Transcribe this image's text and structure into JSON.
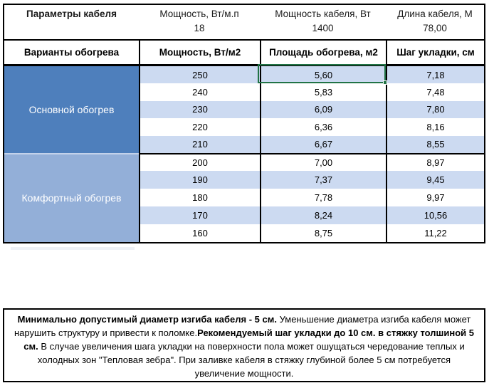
{
  "params": {
    "title": "Параметры кабеля",
    "items": [
      {
        "label": "Мощность, Вт/м.п",
        "value": "18"
      },
      {
        "label": "Мощность кабеля, Вт",
        "value": "1400"
      },
      {
        "label": "Длина кабеля, М",
        "value": "78,00"
      }
    ]
  },
  "heating_table": {
    "headers": {
      "variants": "Варианты обогрева",
      "power": "Мощность, Вт/м2",
      "area": "Площадь обогрева, м2",
      "step": "Шаг укладки, см"
    },
    "sections": [
      {
        "name": "Основной обогрев",
        "rows": [
          {
            "power": "250",
            "area": "5,60",
            "step": "7,18"
          },
          {
            "power": "240",
            "area": "5,83",
            "step": "7,48"
          },
          {
            "power": "230",
            "area": "6,09",
            "step": "7,80"
          },
          {
            "power": "220",
            "area": "6,36",
            "step": "8,16"
          },
          {
            "power": "210",
            "area": "6,67",
            "step": "8,55"
          }
        ]
      },
      {
        "name": "Комфортный обогрев",
        "rows": [
          {
            "power": "200",
            "area": "7,00",
            "step": "8,97"
          },
          {
            "power": "190",
            "area": "7,37",
            "step": "9,45"
          },
          {
            "power": "180",
            "area": "7,78",
            "step": "9,97"
          },
          {
            "power": "170",
            "area": "8,24",
            "step": "10,56"
          },
          {
            "power": "160",
            "area": "8,75",
            "step": "11,22"
          }
        ]
      }
    ]
  },
  "selection": {
    "selected_value": "5,60",
    "border_color": "#217346"
  },
  "note": {
    "bold1": "Минимально допустимый диаметр изгиба кабеля - 5 см.",
    "normal1": "  Уменьшение диаметра изгиба кабеля может нарушить структуру и привести к поломке.",
    "bold2": "Рекомендуемый шаг укладки до 10 см. в стяжку толшиной 5 см.",
    "normal2": " В  случае увеличения шага укладки на поверхности пола может ошущаться чередование теплых и холодных зон \"Тепловая зебра\". При заливке кабеля в стяжку глубиной более 5 см потребуется увеличение мощности."
  },
  "colors": {
    "main_heating_fill": "#4e7fbc",
    "comfort_heating_fill": "#93afd8",
    "row_stripe": "#ccdaf1",
    "selection_green": "#217346",
    "border_black": "#000000"
  }
}
